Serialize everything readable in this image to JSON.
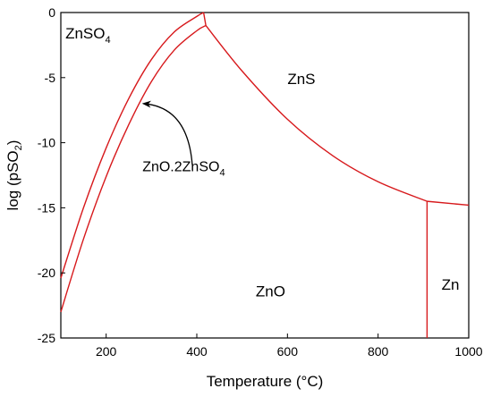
{
  "chart_data": {
    "type": "line",
    "title": "",
    "xlabel": "Temperature (°C)",
    "ylabel_parts": {
      "main": "log (pSO",
      "sub": "2",
      "end": ")"
    },
    "xlim": [
      100,
      1000
    ],
    "ylim": [
      -25,
      0
    ],
    "xticks": [
      200,
      400,
      600,
      800,
      1000
    ],
    "yticks": [
      0,
      -5,
      -10,
      -15,
      -20,
      -25
    ],
    "grid": false,
    "color": "#d7191c",
    "series": [
      {
        "x": [
          100,
          150,
          200,
          250,
          300,
          350,
          400,
          415
        ],
        "y": [
          -20.4,
          -15.0,
          -10.4,
          -6.6,
          -3.6,
          -1.5,
          -0.3,
          0
        ]
      },
      {
        "x": [
          100,
          150,
          200,
          250,
          300,
          350,
          400,
          420
        ],
        "y": [
          -23.0,
          -17.4,
          -12.6,
          -8.6,
          -5.3,
          -2.9,
          -1.4,
          -1.0
        ]
      },
      {
        "x": [
          415,
          420
        ],
        "y": [
          0,
          -1.0
        ]
      },
      {
        "x": [
          420,
          500,
          600,
          700,
          800,
          908
        ],
        "y": [
          -1.0,
          -4.5,
          -8.2,
          -11.0,
          -13.0,
          -14.5
        ]
      },
      {
        "x": [
          908,
          1000
        ],
        "y": [
          -14.5,
          -14.8
        ]
      },
      {
        "x": [
          908,
          908
        ],
        "y": [
          -14.5,
          -25
        ]
      }
    ],
    "regions": [
      {
        "main": "ZnSO",
        "sub": "4",
        "x": 110,
        "y": -2
      },
      {
        "main": "ZnS",
        "sub": "",
        "x": 600,
        "y": -5.5
      },
      {
        "main": "ZnO",
        "sub": "",
        "x": 530,
        "y": -21.8
      },
      {
        "main": "Zn",
        "sub": "",
        "x": 940,
        "y": -21.3
      }
    ],
    "annotation": {
      "main": "ZnO.2ZnSO",
      "sub": "4",
      "text_x": 280,
      "text_y": -12.2,
      "arrow_from": [
        390,
        -11.7
      ],
      "arrow_to": [
        283,
        -7.0
      ]
    }
  }
}
